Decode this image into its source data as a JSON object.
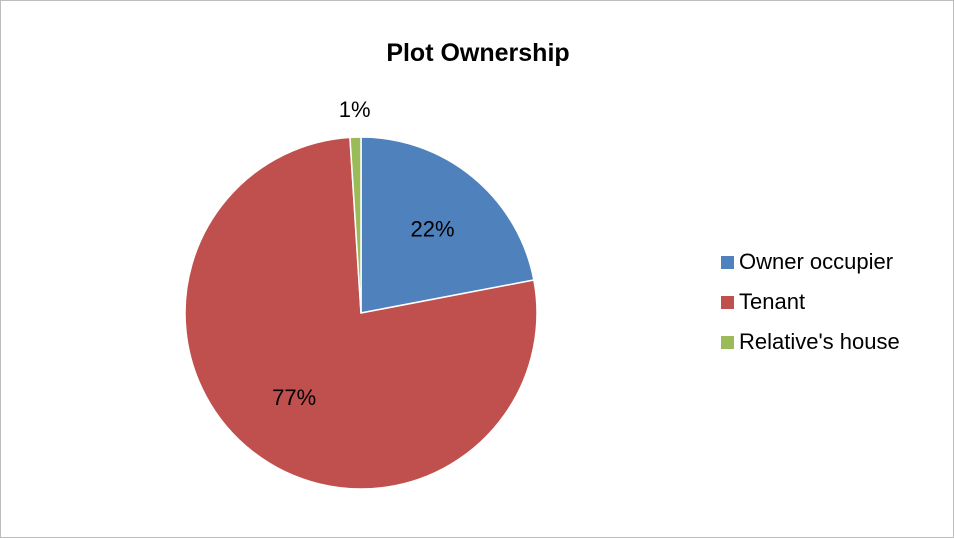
{
  "chart_data": {
    "type": "pie",
    "title": "Plot Ownership",
    "categories": [
      "Owner occupier",
      "Tenant",
      "Relative's house"
    ],
    "values": [
      22,
      77,
      1
    ],
    "labels": [
      "22%",
      "77%",
      "1%"
    ],
    "colors": [
      "#4f81bd",
      "#c0504d",
      "#9bbb59"
    ],
    "legend_position": "right"
  }
}
